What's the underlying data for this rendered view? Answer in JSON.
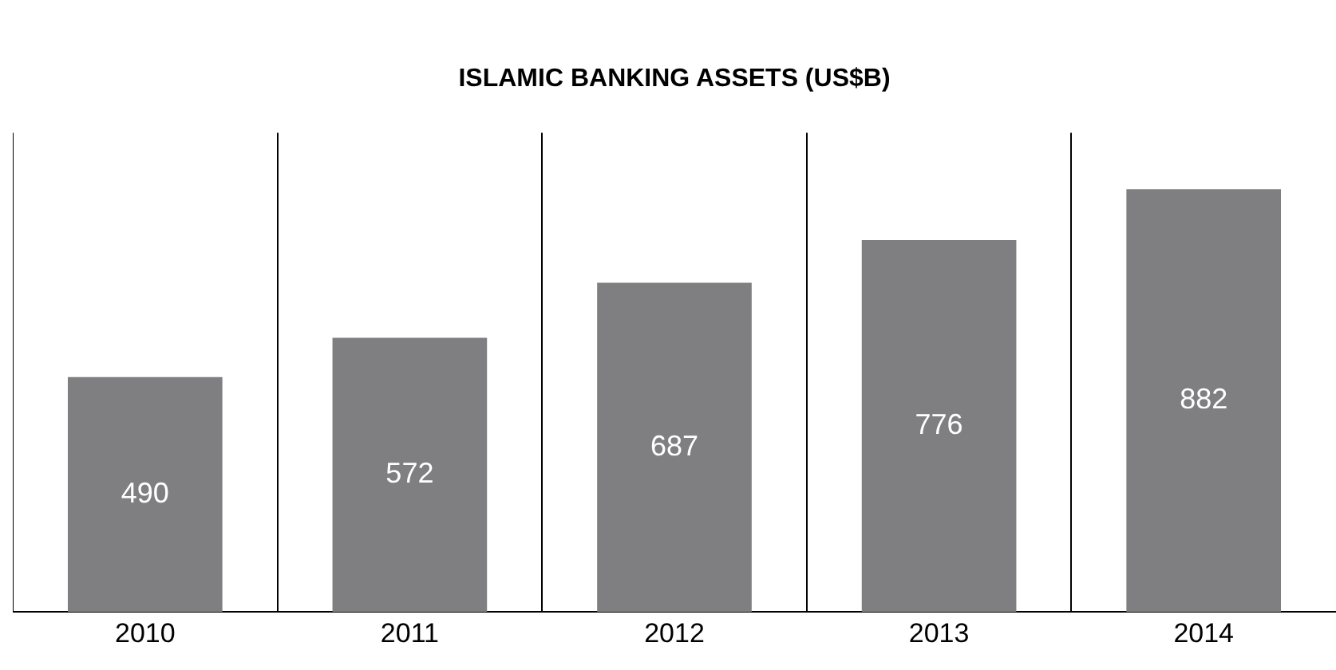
{
  "chart_data": {
    "type": "bar",
    "title": "ISLAMIC BANKING ASSETS (US$B)",
    "categories": [
      "2010",
      "2011",
      "2012",
      "2013",
      "2014"
    ],
    "values": [
      490,
      572,
      687,
      776,
      882
    ],
    "color": "#7f7f82",
    "data_labels": true,
    "grid": "x",
    "legend": false
  }
}
